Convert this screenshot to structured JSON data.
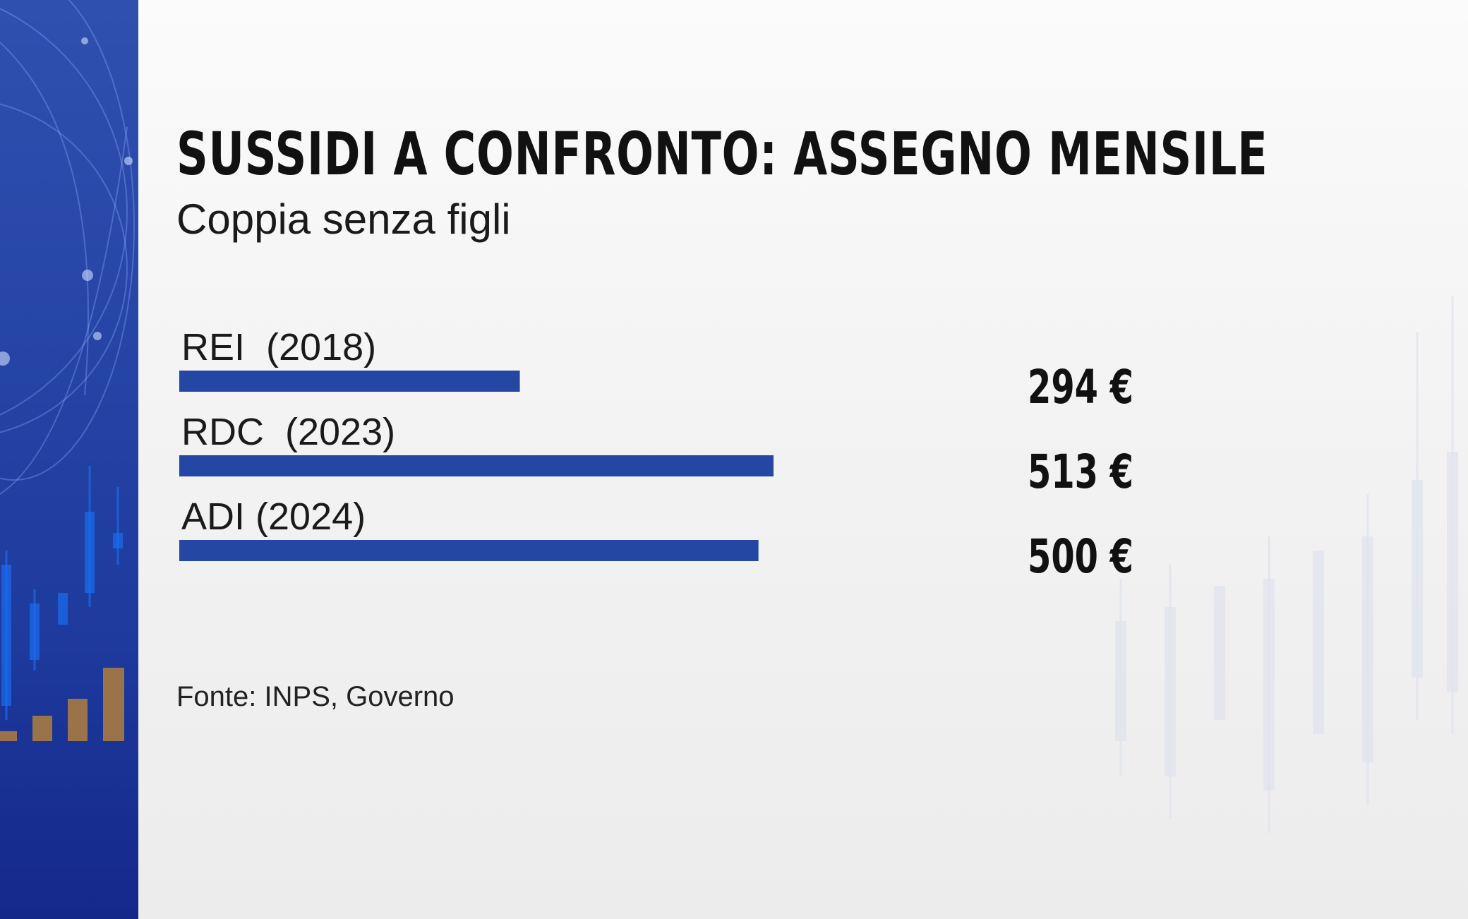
{
  "header": {
    "title": "SUSSIDI A CONFRONTO: ASSEGNO MENSILE",
    "subtitle": "Coppia senza figli"
  },
  "footer": {
    "source": "Fonte: INPS, Governo"
  },
  "colors": {
    "bar": "#2347a3",
    "side_panel": "#2544a6",
    "text": "#111111"
  },
  "chart_data": {
    "type": "bar",
    "orientation": "horizontal",
    "categories": [
      "REI  (2018)",
      "RDC  (2023)",
      "ADI (2024)"
    ],
    "values": [
      294,
      513,
      500
    ],
    "value_labels": [
      "294 €",
      "513 €",
      "500 €"
    ],
    "xlim": [
      0,
      513
    ],
    "grid": false,
    "legend": "none"
  }
}
